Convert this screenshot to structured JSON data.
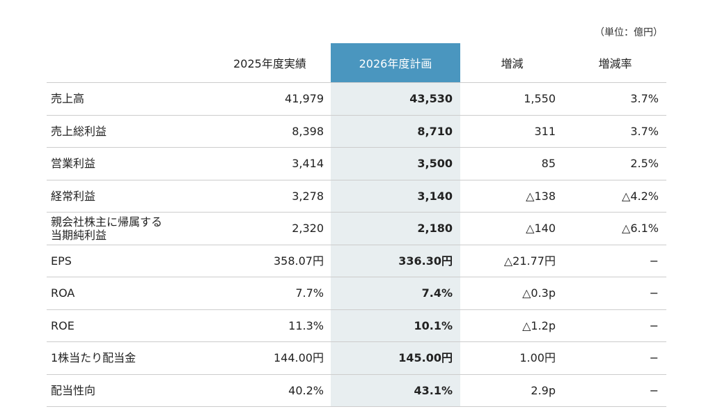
{
  "unit_note": "（単位：億円）",
  "table": {
    "header": [
      "2025年度実績",
      "2026年度計画",
      "増減",
      "増減率"
    ],
    "rows": [
      [
        "売上高",
        "41,979",
        "43,530",
        "1,550",
        "3.7%"
      ],
      [
        "売上総利益",
        "8,398",
        "8,710",
        "311",
        "3.7%"
      ],
      [
        "営業利益",
        "3,414",
        "3,500",
        "85",
        "2.5%"
      ],
      [
        "経常利益",
        "3,278",
        "3,140",
        "△138",
        "△4.2%"
      ],
      [
        "親会社株主に帰属する\n当期純利益",
        "2,320",
        "2,180",
        "△140",
        "△6.1%"
      ],
      [
        "EPS",
        "358.07円",
        "336.30円",
        "△21.77円",
        "−"
      ],
      [
        "ROA",
        "7.7%",
        "7.4%",
        "△0.3p",
        "−"
      ],
      [
        "ROE",
        "11.3%",
        "10.1%",
        "△1.2p",
        "−"
      ],
      [
        "1株当たり配当金",
        "144.00円",
        "145.00円",
        "1.00円",
        "−"
      ],
      [
        "配当性向",
        "40.2%",
        "43.1%",
        "2.9p",
        "−"
      ]
    ]
  }
}
